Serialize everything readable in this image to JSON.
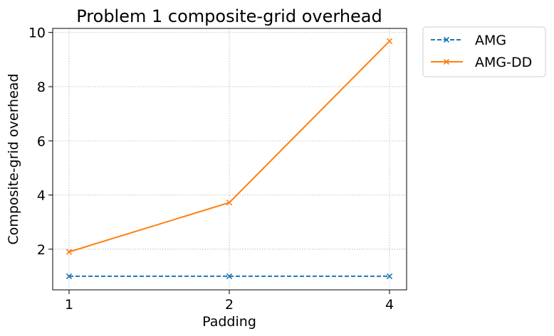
{
  "chart_data": {
    "type": "line",
    "title": "Problem 1 composite-grid overhead",
    "xlabel": "Padding",
    "ylabel": "Composite-grid overhead",
    "x_ticks": [
      "1",
      "2",
      "4"
    ],
    "y_ticks": [
      "2",
      "4",
      "6",
      "8",
      "10"
    ],
    "ylim": [
      0.5,
      10.15
    ],
    "grid": true,
    "legend_position": "outside upper right",
    "series": [
      {
        "name": "AMG",
        "x": [
          1,
          2,
          4
        ],
        "values": [
          1.0,
          1.0,
          1.0
        ],
        "color": "#1f77b4",
        "linestyle": "dashed",
        "marker": "x"
      },
      {
        "name": "AMG-DD",
        "x": [
          1,
          2,
          4
        ],
        "values": [
          1.9,
          3.72,
          9.68
        ],
        "color": "#ff7f0e",
        "linestyle": "solid",
        "marker": "x"
      }
    ]
  }
}
